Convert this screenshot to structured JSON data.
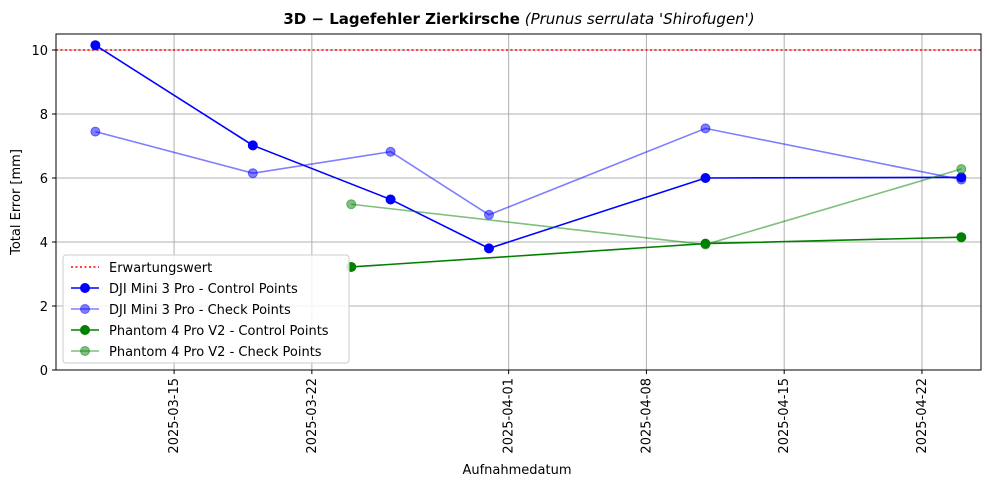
{
  "chart_data": {
    "type": "line",
    "title_bold": "3D − Lagefehler Zierkirsche",
    "title_italic": "(Prunus serrulata 'Shirofugen')",
    "xlabel": "Aufnahmedatum",
    "ylabel": "Total Error [mm]",
    "x_axis_type": "date",
    "xlim": [
      "2025-03-09",
      "2025-04-25"
    ],
    "ylim": [
      0,
      10.5
    ],
    "x_ticks": [
      "2025-03-15",
      "2025-03-22",
      "2025-04-01",
      "2025-04-08",
      "2025-04-15",
      "2025-04-22"
    ],
    "y_ticks": [
      0,
      2,
      4,
      6,
      8,
      10
    ],
    "grid": true,
    "legend_position": "lower-left",
    "reference_line": {
      "name": "Erwartungswert",
      "y": 10,
      "color": "#ff0000",
      "style": "dotted"
    },
    "series": [
      {
        "name": "DJI Mini 3 Pro - Control Points",
        "color": "#0000ff",
        "alpha": 1.0,
        "x": [
          "2025-03-11",
          "2025-03-19",
          "2025-03-26",
          "2025-03-31",
          "2025-04-11",
          "2025-04-24"
        ],
        "values": [
          10.15,
          7.02,
          5.33,
          3.8,
          6.0,
          6.02
        ]
      },
      {
        "name": "DJI Mini 3 Pro - Check Points",
        "color": "#0000ff",
        "alpha": 0.5,
        "x": [
          "2025-03-11",
          "2025-03-19",
          "2025-03-26",
          "2025-03-31",
          "2025-04-11",
          "2025-04-24"
        ],
        "values": [
          7.45,
          6.15,
          6.82,
          4.85,
          7.55,
          5.95
        ]
      },
      {
        "name": "Phantom 4 Pro V2 - Control Points",
        "color": "#008000",
        "alpha": 1.0,
        "x": [
          "2025-03-24",
          "2025-04-11",
          "2025-04-24"
        ],
        "values": [
          3.22,
          3.95,
          4.15
        ]
      },
      {
        "name": "Phantom 4 Pro V2 - Check Points",
        "color": "#008000",
        "alpha": 0.5,
        "x": [
          "2025-03-24",
          "2025-04-11",
          "2025-04-24"
        ],
        "values": [
          5.18,
          3.92,
          6.28
        ]
      }
    ]
  }
}
